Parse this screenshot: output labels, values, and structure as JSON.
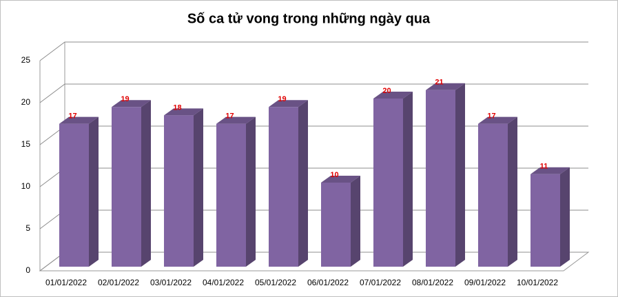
{
  "chart_data": {
    "type": "bar3d",
    "title": "Số ca tử vong trong những ngày qua",
    "categories": [
      "01/01/2022",
      "02/01/2022",
      "03/01/2022",
      "04/01/2022",
      "05/01/2022",
      "06/01/2022",
      "07/01/2022",
      "08/01/2022",
      "09/01/2022",
      "10/01/2022"
    ],
    "values": [
      17,
      19,
      18,
      17,
      19,
      10,
      20,
      21,
      17,
      11
    ],
    "color": "#8064a2",
    "ylim": [
      0,
      25
    ],
    "yticks": [
      0,
      5,
      10,
      15,
      20,
      25
    ],
    "grid": true
  }
}
